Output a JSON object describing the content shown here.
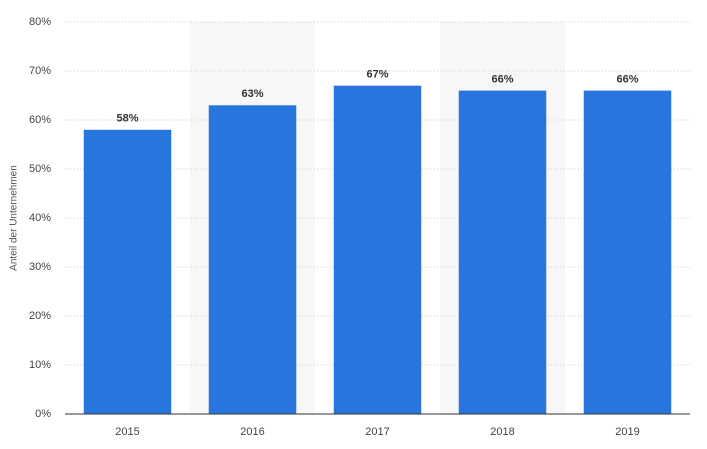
{
  "chart_data": {
    "type": "bar",
    "y_label": "Anteil der Unternehmen",
    "categories": [
      "2015",
      "2016",
      "2017",
      "2018",
      "2019"
    ],
    "values": [
      58,
      63,
      67,
      66,
      66
    ],
    "value_labels": [
      "58%",
      "63%",
      "67%",
      "66%",
      "66%"
    ],
    "color": "#2876dd",
    "ylim": [
      0,
      80
    ],
    "yticks": [
      {
        "value": 0,
        "label": "0%"
      },
      {
        "value": 10,
        "label": "10%"
      },
      {
        "value": 20,
        "label": "20%"
      },
      {
        "value": 30,
        "label": "30%"
      },
      {
        "value": 40,
        "label": "40%"
      },
      {
        "value": 50,
        "label": "50%"
      },
      {
        "value": 60,
        "label": "60%"
      },
      {
        "value": 70,
        "label": "70%"
      },
      {
        "value": 80,
        "label": "80%"
      }
    ],
    "grid": true
  }
}
